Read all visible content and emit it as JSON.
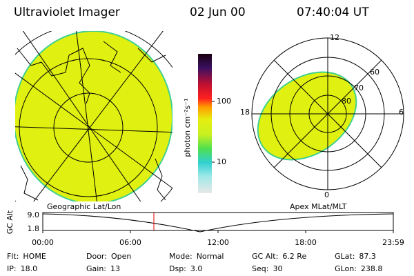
{
  "header": {
    "title": "Ultraviolet Imager",
    "date": "02 Jun 00",
    "time": "07:40:04 UT"
  },
  "geo_panel": {
    "label": "Geographic Lat/Lon"
  },
  "colorbar": {
    "label": "photon cm⁻²s⁻¹",
    "ticks": [
      "100",
      "10"
    ]
  },
  "polar_panel": {
    "label": "Apex MLat/MLT",
    "mlt_labels": [
      "12",
      "6",
      "0",
      "18"
    ],
    "lat_labels": [
      "60",
      "70",
      "80"
    ]
  },
  "altitude_plot": {
    "ylabel": "GC Alt",
    "yticks": [
      "9.0",
      "1.8"
    ],
    "xticks": [
      "00:00",
      "06:00",
      "12:00",
      "18:00",
      "23:59"
    ]
  },
  "footer": [
    [
      {
        "label": "Flt:",
        "value": "HOME"
      },
      {
        "label": "Door:",
        "value": "Open"
      },
      {
        "label": "Mode:",
        "value": "Normal"
      },
      {
        "label": "GC Alt:",
        "value": "6.2 Re"
      },
      {
        "label": "GLat:",
        "value": "87.3"
      }
    ],
    [
      {
        "label": "IP:",
        "value": "18.0"
      },
      {
        "label": "Gain:",
        "value": "13"
      },
      {
        "label": "Dsp:",
        "value": "3.0"
      },
      {
        "label": "Seq:",
        "value": "30"
      },
      {
        "label": "GLon:",
        "value": "238.8"
      }
    ]
  ]
}
